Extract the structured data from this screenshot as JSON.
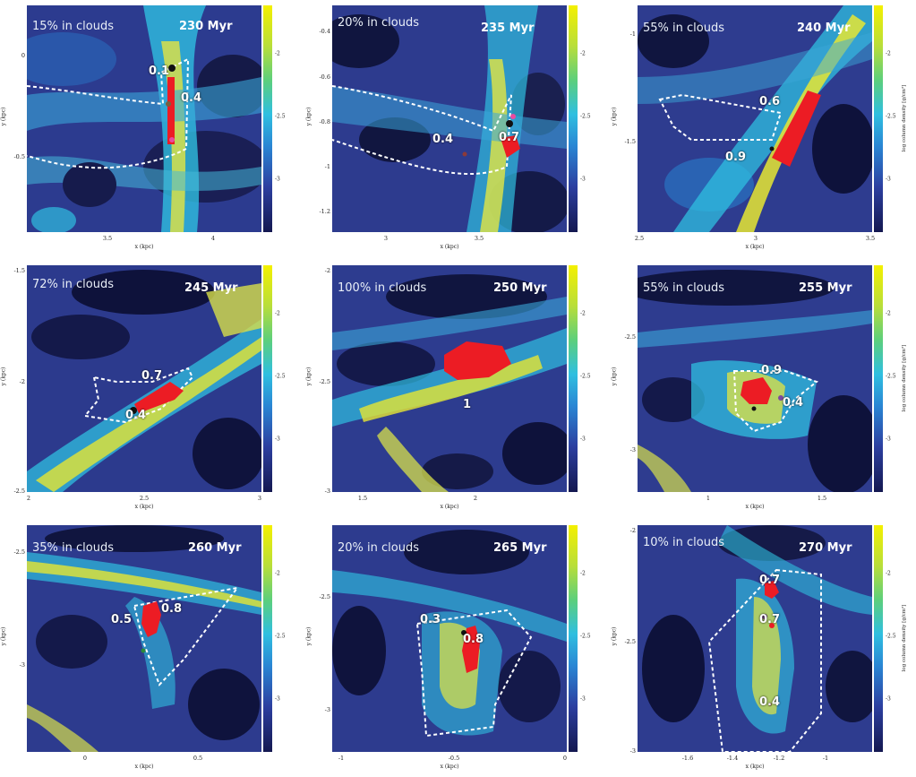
{
  "colorbar": {
    "label": "log column density [g/cm²]",
    "ticks": [
      "-2",
      "-2.5",
      "-3"
    ],
    "gradient": [
      "#f4f000",
      "#5ccf7c",
      "#2fbfe0",
      "#2a86d4",
      "#2c3fa0",
      "#141850"
    ]
  },
  "axis_labels": {
    "x": "x (kpc)",
    "y": "y (kpc)"
  },
  "panels": [
    {
      "id": "p230",
      "fraction_text": "15% in clouds",
      "time": "230 Myr",
      "x_ticks": [
        "3.5",
        "4"
      ],
      "y_ticks": [
        "0",
        "-0.5"
      ],
      "cloud_labels": [
        "0.1",
        "0.4"
      ]
    },
    {
      "id": "p235",
      "fraction_text": "20% in clouds",
      "time": "235 Myr",
      "x_ticks": [
        "3",
        "3.5"
      ],
      "y_ticks": [
        "-0.4",
        "-0.6",
        "-0.8",
        "-1",
        "-1.2"
      ],
      "cloud_labels": [
        "0.4",
        "0.7"
      ]
    },
    {
      "id": "p240",
      "fraction_text": "55% in clouds",
      "time": "240 Myr",
      "x_ticks": [
        "2.5",
        "3",
        "3.5"
      ],
      "y_ticks": [
        "-1",
        "-1.5"
      ],
      "cloud_labels": [
        "0.6",
        "0.9"
      ]
    },
    {
      "id": "p245",
      "fraction_text": "72% in clouds",
      "time": "245 Myr",
      "x_ticks": [
        "2",
        "2.5",
        "3"
      ],
      "y_ticks": [
        "-1.5",
        "-2",
        "-2.5"
      ],
      "cloud_labels": [
        "0.7",
        "0.4"
      ]
    },
    {
      "id": "p250",
      "fraction_text": "100% in clouds",
      "time": "250 Myr",
      "x_ticks": [
        "1.5",
        "2"
      ],
      "y_ticks": [
        "-2",
        "-2.5",
        "-3"
      ],
      "cloud_labels": [
        "1"
      ]
    },
    {
      "id": "p255",
      "fraction_text": "55% in clouds",
      "time": "255 Myr",
      "x_ticks": [
        "1",
        "1.5"
      ],
      "y_ticks": [
        "-2.5",
        "-3"
      ],
      "cloud_labels": [
        "0.9",
        "0.4"
      ]
    },
    {
      "id": "p260",
      "fraction_text": "35% in clouds",
      "time": "260 Myr",
      "x_ticks": [
        "0",
        "0.5"
      ],
      "y_ticks": [
        "-2.5",
        "-3"
      ],
      "cloud_labels": [
        "0.5",
        "0.8"
      ]
    },
    {
      "id": "p265",
      "fraction_text": "20% in clouds",
      "time": "265 Myr",
      "x_ticks": [
        "-1",
        "-0.5",
        "0"
      ],
      "y_ticks": [
        "-2.5",
        "-3"
      ],
      "cloud_labels": [
        "0.3",
        "0.8"
      ]
    },
    {
      "id": "p270",
      "fraction_text": "10% in clouds",
      "time": "270 Myr",
      "x_ticks": [
        "-1.6",
        "-1.4",
        "-1.2",
        "-1"
      ],
      "y_ticks": [
        "-2",
        "-2.5",
        "-3"
      ],
      "cloud_labels": [
        "0.7",
        "0.7",
        "0.4"
      ]
    }
  ]
}
